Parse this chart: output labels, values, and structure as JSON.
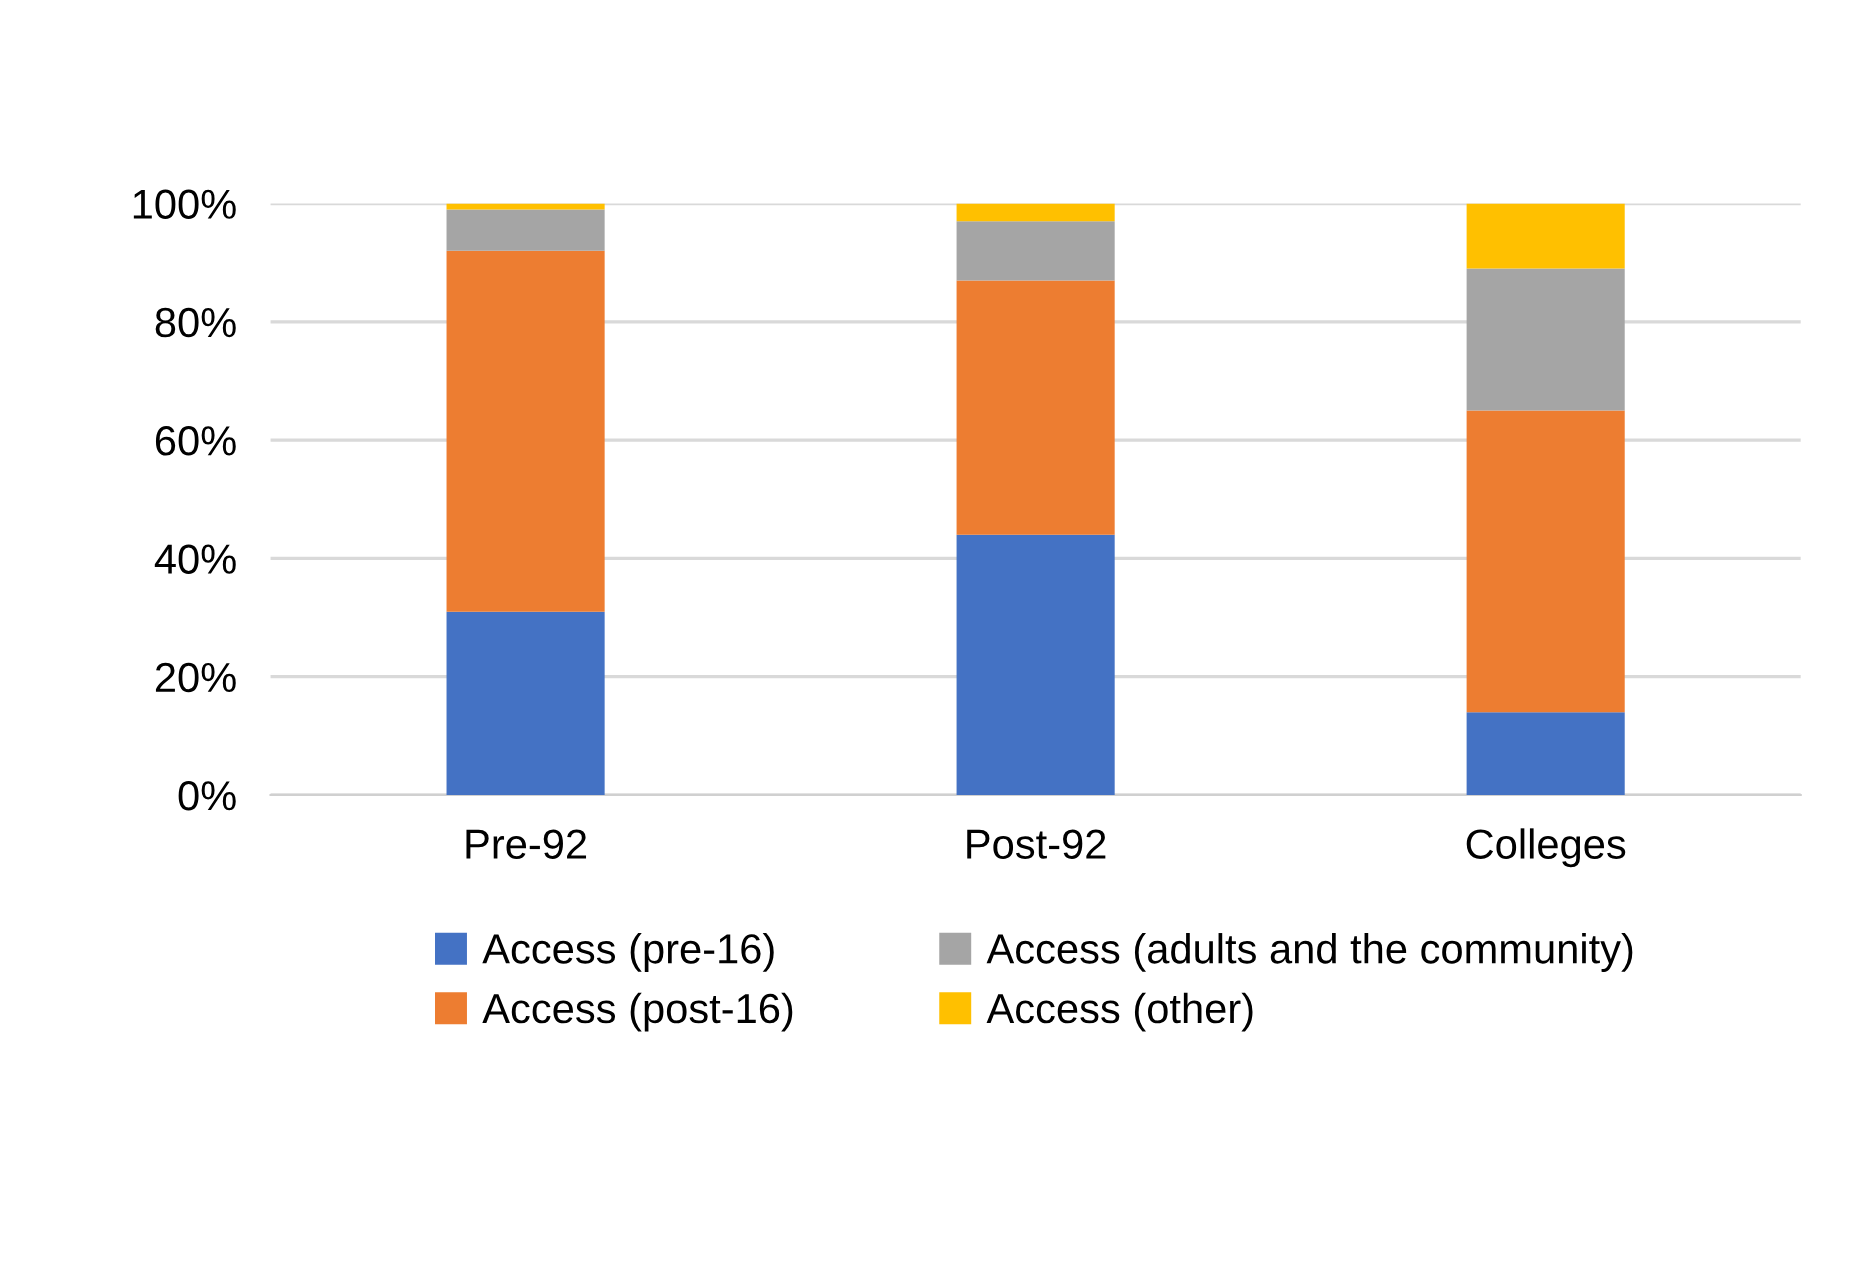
{
  "chart_data": {
    "type": "bar",
    "stacked": true,
    "categories": [
      "Pre-92",
      "Post-92",
      "Colleges"
    ],
    "series": [
      {
        "name": "Access (pre-16)",
        "color": "#4472c4",
        "values": [
          31,
          44,
          14
        ]
      },
      {
        "name": "Access (post-16)",
        "color": "#ed7d31",
        "values": [
          61,
          43,
          51
        ]
      },
      {
        "name": "Access (adults and the community)",
        "color": "#a5a5a5",
        "values": [
          7,
          10,
          24
        ]
      },
      {
        "name": "Access (other)",
        "color": "#ffc000",
        "values": [
          1,
          3,
          11
        ]
      }
    ],
    "ylim": [
      0,
      100
    ],
    "yticks": [
      {
        "value": 0,
        "label": "0%"
      },
      {
        "value": 20,
        "label": "20%"
      },
      {
        "value": 40,
        "label": "40%"
      },
      {
        "value": 60,
        "label": "60%"
      },
      {
        "value": 80,
        "label": "80%"
      },
      {
        "value": 100,
        "label": "100%"
      }
    ],
    "grid": "y",
    "legend": "bottom"
  }
}
